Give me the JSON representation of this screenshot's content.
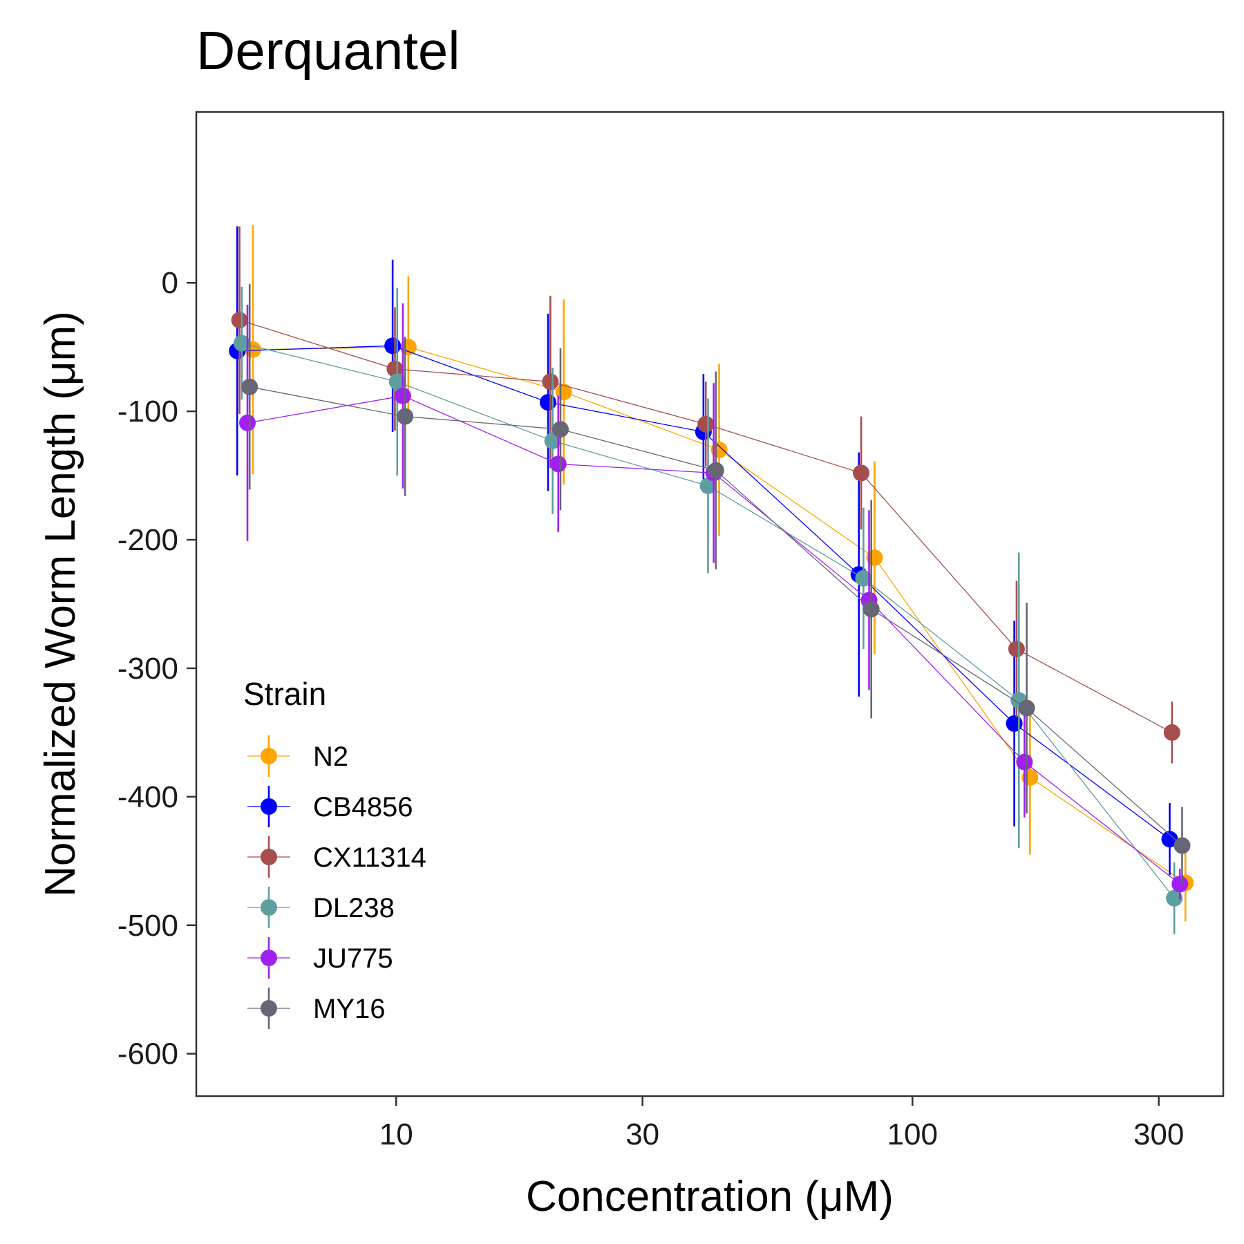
{
  "chart_data": {
    "type": "scatter",
    "title": "Derquantel",
    "xlabel": "Concentration (μM)",
    "ylabel": "Normalized Worm Length (μm)",
    "x_scale": "log",
    "x_ticks": [
      10,
      30,
      100,
      300
    ],
    "x_tick_labels": [
      "10",
      "30",
      "100",
      "300"
    ],
    "xlim": [
      4.1,
      400
    ],
    "y_ticks": [
      0,
      -100,
      -200,
      -300,
      -400,
      -500,
      -600
    ],
    "y_tick_labels": [
      "0",
      "-100",
      "-200",
      "-300",
      "-400",
      "-500",
      "-600"
    ],
    "ylim": [
      -633,
      133
    ],
    "grid": false,
    "legend_title": "Strain",
    "legend_position": "bottom-left inside",
    "doses": [
      5.1,
      10.2,
      20.4,
      40.8,
      81.6,
      163.2,
      326.4
    ],
    "series": [
      {
        "name": "N2",
        "color": "#FFA500",
        "offset": 1.035,
        "y": [
          -52,
          -50,
          -85,
          -130,
          -214,
          -385,
          -467
        ],
        "err": [
          97,
          55,
          72,
          67,
          75,
          60,
          30
        ]
      },
      {
        "name": "CB4856",
        "color": "#0000FF",
        "offset": 0.965,
        "y": [
          -53,
          -49,
          -93,
          -116,
          -227,
          -343,
          -433
        ],
        "err": [
          97,
          67,
          69,
          45,
          95,
          80,
          28
        ]
      },
      {
        "name": "CX11314",
        "color": "#A64D4D",
        "offset": 0.975,
        "y": [
          -29,
          -67,
          -77,
          -110,
          -148,
          -285,
          -350
        ],
        "err": [
          73,
          48,
          67,
          33,
          44,
          53,
          24
        ]
      },
      {
        "name": "DL238",
        "color": "#5F9EA0",
        "offset": 0.985,
        "y": [
          -47,
          -77,
          -123,
          -158,
          -230,
          -325,
          -479
        ],
        "err": [
          44,
          73,
          57,
          68,
          55,
          115,
          28
        ]
      },
      {
        "name": "JU775",
        "color": "#A020F0",
        "offset": 1.01,
        "y": [
          -109,
          -88,
          -141,
          -148,
          -247,
          -373,
          -468
        ],
        "err": [
          92,
          72,
          53,
          70,
          70,
          43,
          12
        ]
      },
      {
        "name": "MY16",
        "color": "#666677",
        "offset": 1.02,
        "y": [
          -81,
          -104,
          -114,
          -146,
          -254,
          -331,
          -438
        ],
        "err": [
          80,
          62,
          63,
          77,
          85,
          82,
          30
        ]
      }
    ]
  }
}
